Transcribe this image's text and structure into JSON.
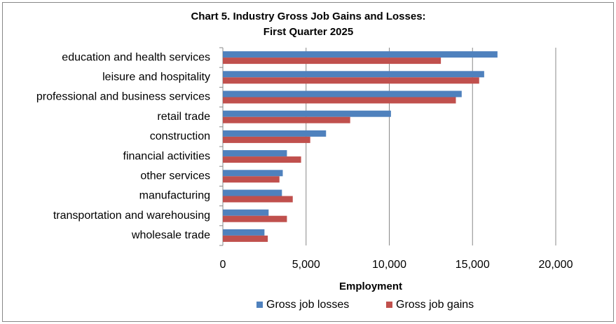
{
  "chart_data": {
    "type": "hbar",
    "title": [
      "Chart 5. Industry Gross Job Gains and Losses:",
      "First Quarter 2025"
    ],
    "x_label": "Employment",
    "categories": [
      "education and health services",
      "leisure and hospitality",
      "professional and business services",
      "retail trade",
      "construction",
      "financial activities",
      "other services",
      "manufacturing",
      "transportation and warehousing",
      "wholesale trade"
    ],
    "series": [
      {
        "name": "Gross job losses",
        "color": "#4f81bd",
        "values": [
          16500,
          15700,
          14350,
          10100,
          6200,
          3850,
          3600,
          3550,
          2750,
          2500
        ]
      },
      {
        "name": "Gross job gains",
        "color": "#c0504d",
        "values": [
          13100,
          15400,
          14000,
          7650,
          5250,
          4700,
          3400,
          4200,
          3850,
          2700
        ]
      }
    ],
    "xlim": [
      0,
      20000
    ],
    "xticks": [
      0,
      {
        "value": 5000,
        "label": "5,000"
      },
      {
        "value": 10000,
        "label": "10,000"
      },
      {
        "value": 15000,
        "label": "15,000"
      },
      {
        "value": 20000,
        "label": "20,000"
      }
    ],
    "grid": true,
    "legend": "bottom"
  }
}
